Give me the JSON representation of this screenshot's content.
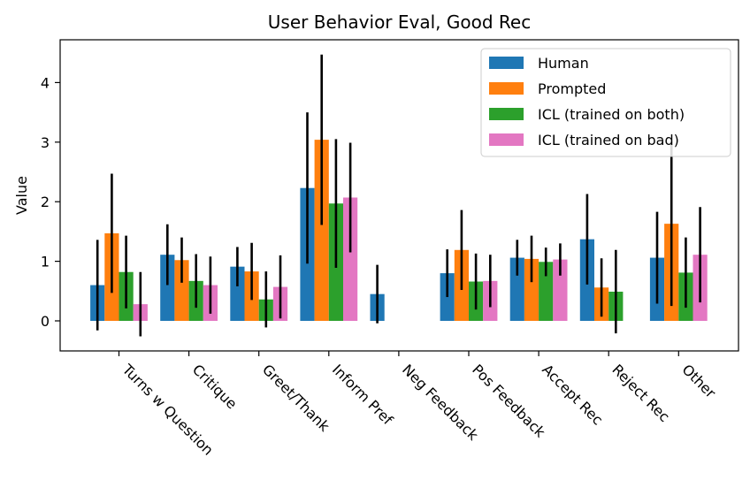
{
  "chart_data": {
    "type": "bar",
    "title": "User Behavior Eval, Good Rec",
    "xlabel": "",
    "ylabel": "Value",
    "ylim": [
      -0.5,
      4.75
    ],
    "yticks": [
      "0",
      "1",
      "2",
      "3",
      "4"
    ],
    "grid": false,
    "legend_position": "top-right",
    "categories": [
      "Turns w Question",
      "Critique",
      "Greet/Thank",
      "Inform Pref",
      "Neg Feedback",
      "Pos Feedback",
      "Accept Rec",
      "Reject Rec",
      "Other"
    ],
    "series": [
      {
        "name": "Human",
        "color": "#1f77b4",
        "values": [
          0.6,
          1.11,
          0.91,
          2.23,
          0.45,
          0.8,
          1.06,
          1.37,
          1.06
        ],
        "errors": [
          0.76,
          0.51,
          0.33,
          1.27,
          0.49,
          0.4,
          0.3,
          0.76,
          0.77
        ]
      },
      {
        "name": "Prompted",
        "color": "#ff7f0e",
        "values": [
          1.47,
          1.02,
          0.83,
          3.04,
          0,
          1.19,
          1.04,
          0.56,
          1.63
        ],
        "errors": [
          1.0,
          0.38,
          0.48,
          1.43,
          0,
          0.67,
          0.39,
          0.49,
          1.38
        ]
      },
      {
        "name": "ICL (trained on both)",
        "color": "#2ca02c",
        "values": [
          0.82,
          0.67,
          0.36,
          1.97,
          0,
          0.66,
          0.99,
          0.49,
          0.81
        ],
        "errors": [
          0.61,
          0.45,
          0.47,
          1.08,
          0,
          0.47,
          0.24,
          0.7,
          0.59
        ]
      },
      {
        "name": "ICL (trained on bad)",
        "color": "#e377c2",
        "values": [
          0.28,
          0.6,
          0.57,
          2.07,
          0,
          0.67,
          1.03,
          0,
          1.11
        ],
        "errors": [
          0.54,
          0.48,
          0.53,
          0.92,
          0,
          0.44,
          0.27,
          0,
          0.8
        ]
      }
    ]
  }
}
